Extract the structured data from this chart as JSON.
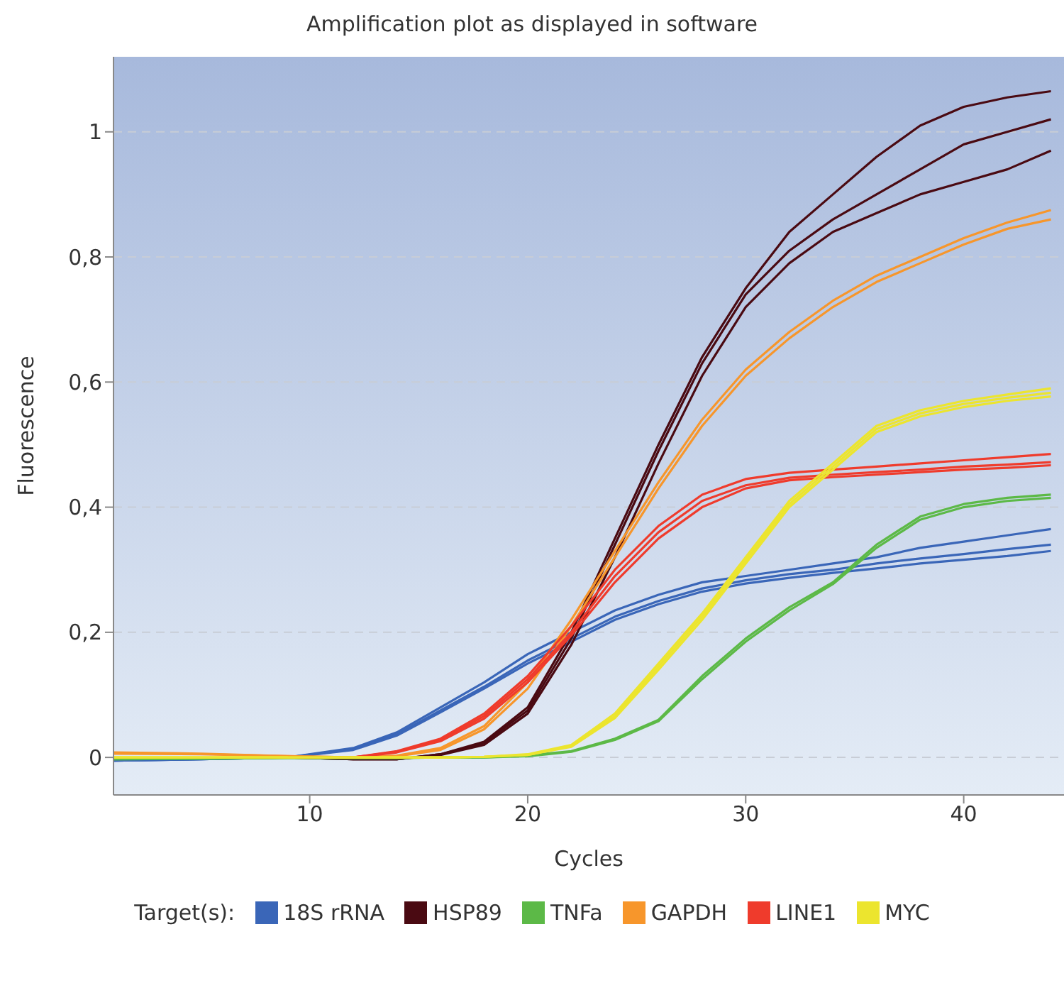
{
  "chart_data": {
    "type": "line",
    "title": "Amplification plot as displayed in software",
    "xlabel": "Cycles",
    "ylabel": "Fluorescence",
    "legend_title": "Target(s):",
    "legend": "bottom",
    "grid": "y",
    "marker": "none",
    "line_style": "solid",
    "xlim": [
      1,
      44.6
    ],
    "xticks": [
      10,
      20,
      30,
      40
    ],
    "ylim": [
      -0.06,
      1.12
    ],
    "yticks": [
      {
        "value": 0,
        "label": "0"
      },
      {
        "value": 0.2,
        "label": "0,2"
      },
      {
        "value": 0.4,
        "label": "0,4"
      },
      {
        "value": 0.6,
        "label": "0,6"
      },
      {
        "value": 0.8,
        "label": "0,8"
      },
      {
        "value": 1,
        "label": "1"
      }
    ],
    "x": [
      1,
      5,
      9,
      12,
      14,
      16,
      18,
      20,
      22,
      24,
      26,
      28,
      30,
      32,
      34,
      36,
      38,
      40,
      42,
      44
    ],
    "series": [
      {
        "name": "18S rRNA",
        "color": "#3a66b8",
        "values": [
          -0.005,
          -0.003,
          0,
          0.015,
          0.04,
          0.08,
          0.12,
          0.165,
          0.2,
          0.235,
          0.26,
          0.28,
          0.29,
          0.3,
          0.31,
          0.32,
          0.335,
          0.345,
          0.355,
          0.365
        ]
      },
      {
        "color": "#3a66b8",
        "values": [
          -0.005,
          -0.003,
          0,
          0.013,
          0.037,
          0.075,
          0.113,
          0.155,
          0.19,
          0.225,
          0.25,
          0.27,
          0.283,
          0.293,
          0.3,
          0.31,
          0.318,
          0.325,
          0.333,
          0.34
        ]
      },
      {
        "color": "#3a66b8",
        "values": [
          -0.005,
          -0.003,
          0,
          0.012,
          0.035,
          0.072,
          0.11,
          0.15,
          0.185,
          0.22,
          0.245,
          0.265,
          0.278,
          0.287,
          0.295,
          0.302,
          0.31,
          0.316,
          0.322,
          0.33
        ]
      },
      {
        "name": "HSP89",
        "color": "#4a0a12",
        "values": [
          null,
          null,
          0,
          -0.003,
          -0.003,
          0.005,
          0.025,
          0.08,
          0.2,
          0.35,
          0.5,
          0.64,
          0.75,
          0.84,
          0.9,
          0.96,
          1.01,
          1.04,
          1.055,
          1.065
        ]
      },
      {
        "color": "#4a0a12",
        "values": [
          null,
          null,
          0,
          -0.003,
          -0.003,
          0.005,
          0.023,
          0.075,
          0.19,
          0.34,
          0.49,
          0.63,
          0.74,
          0.81,
          0.86,
          0.9,
          0.94,
          0.98,
          1,
          1.02
        ]
      },
      {
        "color": "#4a0a12",
        "values": [
          null,
          null,
          0,
          -0.003,
          -0.003,
          0.004,
          0.02,
          0.07,
          0.18,
          0.32,
          0.47,
          0.61,
          0.72,
          0.79,
          0.84,
          0.87,
          0.9,
          0.92,
          0.94,
          0.97
        ]
      },
      {
        "name": "TNFa",
        "color": "#5cb947",
        "values": [
          -0.003,
          -0.002,
          -0.001,
          -0.001,
          -0.001,
          0,
          0,
          0.003,
          0.01,
          0.03,
          0.06,
          0.13,
          0.19,
          0.24,
          0.28,
          0.34,
          0.385,
          0.405,
          0.415,
          0.42
        ]
      },
      {
        "color": "#5cb947",
        "values": [
          -0.003,
          -0.002,
          -0.001,
          -0.001,
          -0.001,
          0,
          0,
          0.002,
          0.009,
          0.028,
          0.058,
          0.125,
          0.185,
          0.235,
          0.277,
          0.335,
          0.38,
          0.4,
          0.41,
          0.415
        ]
      },
      {
        "name": "GAPDH",
        "color": "#f7962b",
        "values": [
          0.008,
          0.006,
          0.002,
          0,
          0.003,
          0.015,
          0.05,
          0.12,
          0.22,
          0.33,
          0.44,
          0.54,
          0.62,
          0.68,
          0.73,
          0.77,
          0.8,
          0.83,
          0.855,
          0.875
        ]
      },
      {
        "color": "#f7962b",
        "values": [
          0.006,
          0.005,
          0.002,
          0,
          0.002,
          0.012,
          0.045,
          0.11,
          0.21,
          0.32,
          0.43,
          0.53,
          0.61,
          0.67,
          0.72,
          0.76,
          0.79,
          0.82,
          0.845,
          0.86
        ]
      },
      {
        "name": "LINE1",
        "color": "#ef3b2c",
        "values": [
          null,
          null,
          0,
          0,
          0.01,
          0.03,
          0.07,
          0.13,
          0.21,
          0.3,
          0.37,
          0.42,
          0.445,
          0.455,
          0.46,
          0.465,
          0.47,
          0.475,
          0.48,
          0.485
        ]
      },
      {
        "color": "#ef3b2c",
        "values": [
          null,
          null,
          0,
          0,
          0.009,
          0.028,
          0.066,
          0.125,
          0.2,
          0.29,
          0.36,
          0.41,
          0.435,
          0.447,
          0.452,
          0.456,
          0.46,
          0.465,
          0.468,
          0.472
        ]
      },
      {
        "color": "#ef3b2c",
        "values": [
          null,
          null,
          0,
          0,
          0.008,
          0.026,
          0.062,
          0.12,
          0.195,
          0.28,
          0.35,
          0.4,
          0.43,
          0.443,
          0.448,
          0.452,
          0.456,
          0.46,
          0.463,
          0.467
        ]
      },
      {
        "name": "MYC",
        "color": "#ece52e",
        "values": [
          0,
          0,
          0,
          0,
          0,
          0,
          0.001,
          0.005,
          0.02,
          0.07,
          0.15,
          0.23,
          0.32,
          0.41,
          0.47,
          0.53,
          0.555,
          0.57,
          0.58,
          0.59
        ]
      },
      {
        "color": "#ece52e",
        "values": [
          0,
          0,
          0,
          0,
          0,
          0,
          0.001,
          0.004,
          0.018,
          0.066,
          0.145,
          0.225,
          0.315,
          0.405,
          0.465,
          0.525,
          0.55,
          0.565,
          0.575,
          0.583
        ]
      },
      {
        "color": "#ece52e",
        "values": [
          0,
          0,
          0,
          0,
          0,
          0,
          0.001,
          0.004,
          0.017,
          0.063,
          0.14,
          0.22,
          0.31,
          0.4,
          0.46,
          0.52,
          0.545,
          0.56,
          0.57,
          0.577
        ]
      }
    ]
  }
}
